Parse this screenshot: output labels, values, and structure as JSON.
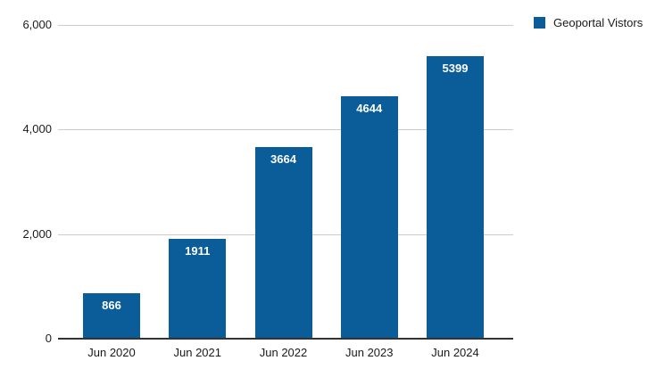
{
  "chart_data": {
    "type": "bar",
    "title": "",
    "series_name": "Geoportal Vistors",
    "categories": [
      "Jun 2020",
      "Jun 2021",
      "Jun 2022",
      "Jun 2023",
      "Jun 2024"
    ],
    "values": [
      866,
      1911,
      3664,
      4644,
      5399
    ],
    "ylim": [
      0,
      6000
    ],
    "ytick_labels": [
      "6,000",
      "4,000",
      "2,000",
      "0"
    ],
    "ytick_values": [
      6000,
      4000,
      2000,
      0
    ],
    "grid": true,
    "legend_position": "top-right",
    "bar_color": "#0b5d99",
    "value_label_color": "#ffffff",
    "gridline_color": "#cccccc",
    "axis_line_color": "#333333"
  }
}
